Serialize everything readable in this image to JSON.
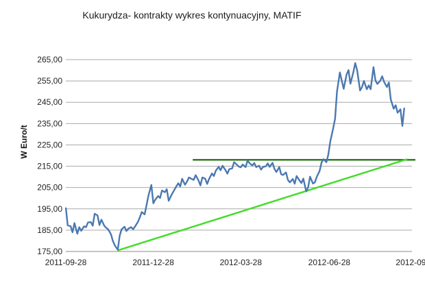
{
  "chart_data": {
    "type": "line",
    "title": "Kukurydza- kontrakty wykres kontynuacyjny, MATIF",
    "ylabel": "W Euro/t",
    "xlabel": "",
    "x_ticks": [
      "2011-09-28",
      "2011-12-28",
      "2012-03-28",
      "2012-06-28",
      "2012-09-"
    ],
    "y_ticks": [
      "175,00",
      "185,00",
      "195,00",
      "205,00",
      "215,00",
      "225,00",
      "235,00",
      "245,00",
      "255,00",
      "265,00"
    ],
    "ylim": [
      175,
      265
    ],
    "grid": "horizontal",
    "x_start": "2011-09-28",
    "series": [
      {
        "color": "#4a78b0",
        "points": [
          [
            "2011-09-28",
            195.6
          ],
          [
            "2011-09-30",
            187.2
          ],
          [
            "2011-10-03",
            186.9
          ],
          [
            "2011-10-05",
            184.0
          ],
          [
            "2011-10-07",
            188.3
          ],
          [
            "2011-10-10",
            183.3
          ],
          [
            "2011-10-12",
            186.4
          ],
          [
            "2011-10-14",
            184.7
          ],
          [
            "2011-10-17",
            186.8
          ],
          [
            "2011-10-19",
            186.4
          ],
          [
            "2011-10-21",
            188.6
          ],
          [
            "2011-10-24",
            188.8
          ],
          [
            "2011-10-26",
            187.1
          ],
          [
            "2011-10-28",
            192.7
          ],
          [
            "2011-10-31",
            191.9
          ],
          [
            "2011-11-02",
            187.4
          ],
          [
            "2011-11-04",
            189.9
          ],
          [
            "2011-11-07",
            187.1
          ],
          [
            "2011-11-09",
            186.1
          ],
          [
            "2011-11-11",
            185.4
          ],
          [
            "2011-11-14",
            183.1
          ],
          [
            "2011-11-16",
            179.9
          ],
          [
            "2011-11-18",
            177.9
          ],
          [
            "2011-11-21",
            175.8
          ],
          [
            "2011-11-23",
            182.4
          ],
          [
            "2011-11-25",
            185.4
          ],
          [
            "2011-11-28",
            186.6
          ],
          [
            "2011-11-30",
            184.6
          ],
          [
            "2011-12-02",
            185.7
          ],
          [
            "2011-12-05",
            186.4
          ],
          [
            "2011-12-07",
            185.4
          ],
          [
            "2011-12-09",
            186.7
          ],
          [
            "2011-12-12",
            188.9
          ],
          [
            "2011-12-14",
            191.0
          ],
          [
            "2011-12-16",
            193.5
          ],
          [
            "2011-12-19",
            192.4
          ],
          [
            "2011-12-21",
            196.8
          ],
          [
            "2011-12-23",
            201.3
          ],
          [
            "2011-12-26",
            206.2
          ],
          [
            "2011-12-28",
            197.6
          ],
          [
            "2011-12-30",
            199.3
          ],
          [
            "2012-01-02",
            201.0
          ],
          [
            "2012-01-04",
            200.1
          ],
          [
            "2012-01-06",
            203.6
          ],
          [
            "2012-01-09",
            202.8
          ],
          [
            "2012-01-11",
            204.2
          ],
          [
            "2012-01-13",
            198.8
          ],
          [
            "2012-01-16",
            201.6
          ],
          [
            "2012-01-18",
            203.2
          ],
          [
            "2012-01-20",
            204.8
          ],
          [
            "2012-01-23",
            207.0
          ],
          [
            "2012-01-25",
            205.5
          ],
          [
            "2012-01-27",
            209.1
          ],
          [
            "2012-01-30",
            206.3
          ],
          [
            "2012-02-01",
            207.8
          ],
          [
            "2012-02-03",
            209.7
          ],
          [
            "2012-02-06",
            209.0
          ],
          [
            "2012-02-08",
            208.6
          ],
          [
            "2012-02-10",
            210.8
          ],
          [
            "2012-02-13",
            208.3
          ],
          [
            "2012-02-15",
            206.0
          ],
          [
            "2012-02-17",
            209.7
          ],
          [
            "2012-02-20",
            209.1
          ],
          [
            "2012-02-22",
            206.7
          ],
          [
            "2012-02-24",
            209.0
          ],
          [
            "2012-02-27",
            211.6
          ],
          [
            "2012-02-29",
            210.4
          ],
          [
            "2012-03-02",
            212.9
          ],
          [
            "2012-03-05",
            214.7
          ],
          [
            "2012-03-07",
            213.1
          ],
          [
            "2012-03-09",
            215.2
          ],
          [
            "2012-03-12",
            213.2
          ],
          [
            "2012-03-14",
            211.5
          ],
          [
            "2012-03-16",
            213.6
          ],
          [
            "2012-03-19",
            214.0
          ],
          [
            "2012-03-21",
            216.9
          ],
          [
            "2012-03-23",
            216.1
          ],
          [
            "2012-03-26",
            214.8
          ],
          [
            "2012-03-28",
            214.5
          ],
          [
            "2012-03-30",
            215.8
          ],
          [
            "2012-04-02",
            214.6
          ],
          [
            "2012-04-04",
            217.6
          ],
          [
            "2012-04-06",
            216.5
          ],
          [
            "2012-04-09",
            215.3
          ],
          [
            "2012-04-11",
            216.5
          ],
          [
            "2012-04-13",
            214.6
          ],
          [
            "2012-04-16",
            215.2
          ],
          [
            "2012-04-18",
            213.4
          ],
          [
            "2012-04-20",
            214.6
          ],
          [
            "2012-04-23",
            215.0
          ],
          [
            "2012-04-25",
            216.3
          ],
          [
            "2012-04-27",
            214.7
          ],
          [
            "2012-04-30",
            216.6
          ],
          [
            "2012-05-02",
            213.7
          ],
          [
            "2012-05-04",
            212.3
          ],
          [
            "2012-05-07",
            214.6
          ],
          [
            "2012-05-09",
            211.2
          ],
          [
            "2012-05-11",
            210.9
          ],
          [
            "2012-05-14",
            212.1
          ],
          [
            "2012-05-16",
            208.6
          ],
          [
            "2012-05-18",
            207.4
          ],
          [
            "2012-05-21",
            209.0
          ],
          [
            "2012-05-23",
            206.8
          ],
          [
            "2012-05-25",
            210.4
          ],
          [
            "2012-05-28",
            208.3
          ],
          [
            "2012-05-30",
            207.1
          ],
          [
            "2012-06-01",
            209.2
          ],
          [
            "2012-06-04",
            203.2
          ],
          [
            "2012-06-06",
            205.1
          ],
          [
            "2012-06-08",
            210.1
          ],
          [
            "2012-06-11",
            206.9
          ],
          [
            "2012-06-13",
            207.4
          ],
          [
            "2012-06-15",
            210.0
          ],
          [
            "2012-06-18",
            212.8
          ],
          [
            "2012-06-20",
            216.8
          ],
          [
            "2012-06-22",
            218.3
          ],
          [
            "2012-06-25",
            216.9
          ],
          [
            "2012-06-27",
            220.5
          ],
          [
            "2012-06-29",
            226.6
          ],
          [
            "2012-07-02",
            232.7
          ],
          [
            "2012-07-04",
            237.2
          ],
          [
            "2012-07-06",
            250.0
          ],
          [
            "2012-07-09",
            259.0
          ],
          [
            "2012-07-11",
            255.1
          ],
          [
            "2012-07-13",
            251.3
          ],
          [
            "2012-07-16",
            258.0
          ],
          [
            "2012-07-18",
            260.1
          ],
          [
            "2012-07-20",
            253.7
          ],
          [
            "2012-07-23",
            259.0
          ],
          [
            "2012-07-25",
            263.4
          ],
          [
            "2012-07-27",
            260.0
          ],
          [
            "2012-07-30",
            250.5
          ],
          [
            "2012-08-01",
            252.1
          ],
          [
            "2012-08-03",
            255.0
          ],
          [
            "2012-08-06",
            251.1
          ],
          [
            "2012-08-08",
            252.9
          ],
          [
            "2012-08-10",
            251.1
          ],
          [
            "2012-08-13",
            261.5
          ],
          [
            "2012-08-15",
            255.2
          ],
          [
            "2012-08-17",
            253.6
          ],
          [
            "2012-08-20",
            255.1
          ],
          [
            "2012-08-22",
            257.2
          ],
          [
            "2012-08-24",
            254.6
          ],
          [
            "2012-08-27",
            252.1
          ],
          [
            "2012-08-29",
            254.3
          ],
          [
            "2012-08-31",
            246.3
          ],
          [
            "2012-09-03",
            242.0
          ],
          [
            "2012-09-05",
            243.6
          ],
          [
            "2012-09-07",
            240.1
          ],
          [
            "2012-09-10",
            241.7
          ],
          [
            "2012-09-12",
            233.9
          ],
          [
            "2012-09-14",
            242.4
          ]
        ]
      }
    ],
    "annotations": [
      {
        "type": "horizontal-line",
        "color": "#2e7d1f",
        "y": 218.0,
        "x_from": "2012-02-07",
        "x_to": "2012-09-17"
      },
      {
        "type": "trend-line",
        "color": "#44dd2a",
        "from": [
          "2011-11-21",
          175.5
        ],
        "to": [
          "2012-09-17",
          218.3
        ]
      }
    ]
  }
}
